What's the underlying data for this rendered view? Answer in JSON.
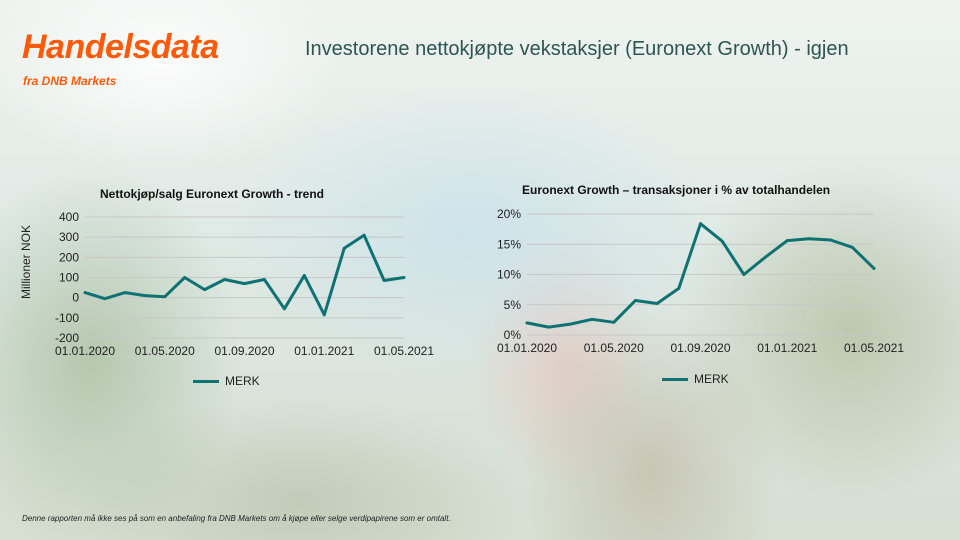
{
  "brand": {
    "title": "Handelsdata",
    "subtitle": "fra DNB Markets"
  },
  "slide_title": "Investorene nettokjøpte vekstaksjer (Euronext Growth) - igjen",
  "footnote": "Denne rapporten må ikke ses på som en anbefaling fra DNB Markets om å kjøpe eller selge verdipapirene som er omtalt.",
  "colors": {
    "brand_orange": "#ff5a0a",
    "series": "#0f7272",
    "grid": "#c8c8c8",
    "title_teal": "#2d5552"
  },
  "chart_data": [
    {
      "type": "line",
      "title": "Nettokjøp/salg Euronext Growth - trend",
      "ylabel": "Millioner NOK",
      "xlabel": "",
      "ylim": [
        -200,
        400
      ],
      "yticks": [
        400,
        300,
        200,
        100,
        0,
        -100,
        -200
      ],
      "ytick_labels": [
        "400",
        "300",
        "200",
        "100",
        "0",
        "-100",
        "-200"
      ],
      "xticks": [
        "01.01.2020",
        "01.05.2020",
        "01.09.2020",
        "01.01.2021",
        "01.05.2021"
      ],
      "grid": true,
      "legend_position": "bottom",
      "series": [
        {
          "name": "MERK",
          "x": [
            "01.01.2020",
            "01.02.2020",
            "01.03.2020",
            "01.04.2020",
            "01.05.2020",
            "01.06.2020",
            "01.07.2020",
            "01.08.2020",
            "01.09.2020",
            "01.10.2020",
            "01.11.2020",
            "01.12.2020",
            "01.01.2021",
            "01.02.2021",
            "01.03.2021",
            "01.04.2021",
            "01.05.2021"
          ],
          "values": [
            25,
            -5,
            25,
            10,
            5,
            100,
            40,
            90,
            70,
            90,
            -55,
            110,
            -85,
            245,
            310,
            85,
            100
          ]
        }
      ]
    },
    {
      "type": "line",
      "title": "Euronext Growth – transaksjoner i % av totalhandelen",
      "ylabel": "",
      "xlabel": "",
      "ylim": [
        0,
        20
      ],
      "yticks": [
        20,
        15,
        10,
        5,
        0
      ],
      "ytick_labels": [
        "20%",
        "15%",
        "10%",
        "5%",
        "0%"
      ],
      "xticks": [
        "01.01.2020",
        "01.05.2020",
        "01.09.2020",
        "01.01.2021",
        "01.05.2021"
      ],
      "grid": true,
      "legend_position": "bottom",
      "series": [
        {
          "name": "MERK",
          "x": [
            "01.01.2020",
            "01.02.2020",
            "01.03.2020",
            "01.04.2020",
            "01.05.2020",
            "01.06.2020",
            "01.07.2020",
            "01.08.2020",
            "01.09.2020",
            "01.10.2020",
            "01.11.2020",
            "01.12.2020",
            "01.01.2021",
            "01.02.2021",
            "01.03.2021",
            "01.04.2021",
            "01.05.2021"
          ],
          "values": [
            2.0,
            1.3,
            1.8,
            2.6,
            2.1,
            5.7,
            5.2,
            7.7,
            18.4,
            15.5,
            10.0,
            12.9,
            15.6,
            15.9,
            15.7,
            14.5,
            11.0
          ]
        }
      ]
    }
  ]
}
